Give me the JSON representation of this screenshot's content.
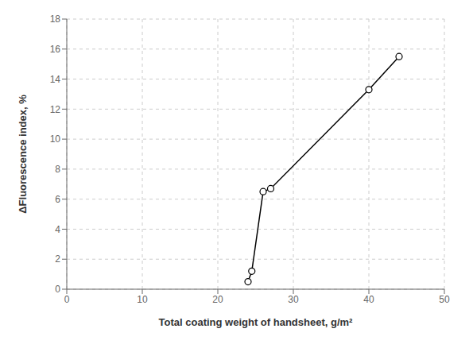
{
  "chart_data": {
    "type": "line",
    "x": [
      24.0,
      24.5,
      26.0,
      27.0,
      40.0,
      44.0
    ],
    "values": [
      0.5,
      1.2,
      6.5,
      6.7,
      13.3,
      15.5
    ],
    "xlabel": "Total coating weight of handsheet, g/m²",
    "ylabel": "ΔFluorescence index, %",
    "xlim": [
      0,
      50
    ],
    "ylim": [
      0,
      18
    ],
    "xticks": [
      0,
      10,
      20,
      30,
      40,
      50
    ],
    "yticks": [
      0,
      2,
      4,
      6,
      8,
      10,
      12,
      14,
      16,
      18
    ],
    "color": "#000000",
    "marker": "circle",
    "line_style": "solid",
    "grid": true
  }
}
